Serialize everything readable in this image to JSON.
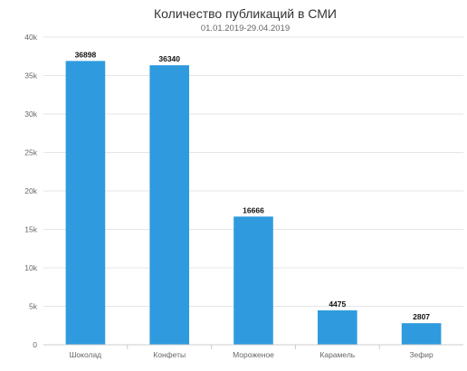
{
  "chart_data": {
    "type": "bar",
    "title": "Количество публикаций в СМИ",
    "subtitle": "01.01.2019-29.04.2019",
    "categories": [
      "Шоколад",
      "Конфеты",
      "Мороженое",
      "Карамель",
      "Зефир"
    ],
    "values": [
      36898,
      36340,
      16666,
      4475,
      2807
    ],
    "ylim": [
      0,
      40000
    ],
    "yticks": [
      0,
      5000,
      10000,
      15000,
      20000,
      25000,
      30000,
      35000,
      40000
    ],
    "ytick_labels": [
      "0",
      "5k",
      "10k",
      "15k",
      "20k",
      "25k",
      "30k",
      "35k",
      "40k"
    ],
    "xlabel": "",
    "ylabel": "",
    "grid": true,
    "legend": "none",
    "colors": {
      "bar": "#2f9bde"
    }
  }
}
